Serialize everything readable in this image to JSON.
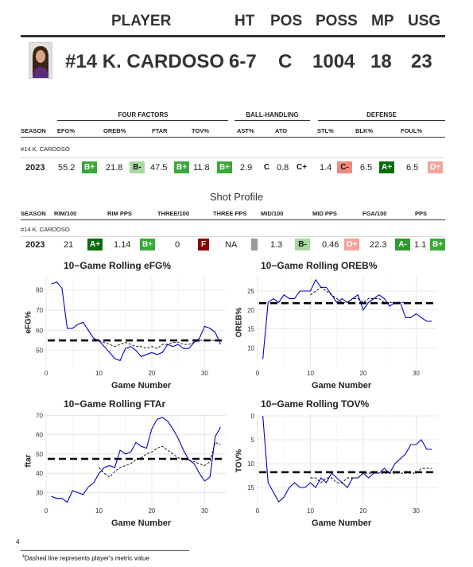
{
  "header": {
    "labels": [
      "PLAYER",
      "HT",
      "POS",
      "POSS",
      "MP",
      "USG"
    ],
    "player_name": "#14 K. CARDOSO",
    "ht": "6-7",
    "pos": "C",
    "poss": "1004",
    "mp": "18",
    "usg": "23"
  },
  "four_factors": {
    "groups": [
      "FOUR FACTORS",
      "BALL-HANDLING",
      "DEFENSE"
    ],
    "columns": [
      "SEASON",
      "EFG%",
      "OREB%",
      "FTAR",
      "TOV%",
      "AST%",
      "ATO",
      "STL%",
      "BLK%",
      "FOUL%"
    ],
    "player_label": "#14 K. CARDOSO",
    "row": {
      "season": "2023",
      "efg": "55.2",
      "efg_grade": "B+",
      "oreb": "21.8",
      "oreb_grade": "B-",
      "ftar": "47.5",
      "ftar_grade": "B+",
      "tov": "11.8",
      "tov_grade": "B+",
      "ast": "2.9",
      "ast_grade": "C",
      "ato": "0.8",
      "ato_grade": "C+",
      "stl": "1.4",
      "stl_grade": "C-",
      "blk": "6.5",
      "blk_grade": "A+",
      "foul": "6.5",
      "foul_grade": "D+"
    }
  },
  "shot_profile": {
    "title": "Shot Profile",
    "columns": [
      "SEASON",
      "RIM/100",
      "RIM PPS",
      "THREE/100",
      "THREE PPS",
      "MID/100",
      "MID PPS",
      "FGA/100",
      "PPS"
    ],
    "player_label": "#14 K. CARDOSO",
    "row": {
      "season": "2023",
      "rim100": "21",
      "rim100_grade": "A+",
      "rimpps": "1.14",
      "rimpps_grade": "B+",
      "three100": "0",
      "three100_grade": "F",
      "threepps": "NA",
      "mid100": "1.3",
      "mid100_grade": "B-",
      "midpps": "0.46",
      "midpps_grade": "D+",
      "fga100": "22.3",
      "fga100_grade": "A-",
      "pps": "1.1",
      "pps_grade": "B+"
    }
  },
  "colors": {
    "A+": "#0b6b0b",
    "A-": "#2f9a2f",
    "B+": "#3aa83a",
    "B-": "#a9d8a0",
    "C": "#ffffff",
    "C+": "#ffffff",
    "C-": "#f08a80",
    "D+": "#f4a39b",
    "F": "#8b0000",
    "NA": "#999999",
    "line": "#0000cc"
  },
  "chart_data": [
    {
      "type": "line",
      "title": "10−Game Rolling eFG%",
      "xlabel": "Game Number",
      "ylabel": "eFG%",
      "xlim": [
        0,
        34
      ],
      "ylim": [
        42,
        87
      ],
      "xticks": [
        0,
        10,
        20,
        30
      ],
      "yticks": [
        50,
        60,
        70,
        80
      ],
      "reference": 55,
      "series": [
        {
          "style": "solid",
          "x": [
            1,
            2,
            3,
            4,
            5,
            6,
            7,
            8,
            9,
            10,
            11,
            12,
            13,
            14,
            15,
            16,
            17,
            18,
            19,
            20,
            21,
            22,
            23,
            24,
            25,
            26,
            27,
            28,
            29,
            30,
            31,
            32,
            33
          ],
          "y": [
            83,
            84,
            81,
            61,
            61,
            63,
            64,
            60,
            56,
            55,
            52,
            49,
            46,
            45,
            51,
            52,
            50,
            47,
            48,
            49,
            48,
            49,
            53,
            52,
            53,
            51,
            51,
            54,
            56,
            62,
            61,
            59,
            53
          ]
        },
        {
          "style": "dashed",
          "x": [
            10,
            11,
            12,
            13,
            14,
            15,
            16,
            17,
            18,
            19,
            20,
            21,
            22,
            23,
            24,
            25,
            26,
            27,
            28,
            29,
            30,
            31,
            32,
            33
          ],
          "y": [
            55,
            54,
            53,
            52,
            53,
            54,
            53,
            52,
            52,
            51,
            52,
            51,
            53,
            53,
            54,
            54,
            53,
            53,
            54,
            55,
            55,
            55,
            55,
            55
          ]
        }
      ]
    },
    {
      "type": "line",
      "title": "10−Game Rolling OREB%",
      "xlabel": "Game Number",
      "ylabel": "OREB%",
      "xlim": [
        0,
        34
      ],
      "ylim": [
        5,
        29
      ],
      "xticks": [
        0,
        10,
        20,
        30
      ],
      "yticks": [
        10,
        15,
        20,
        25
      ],
      "reference": 21.8,
      "series": [
        {
          "style": "solid",
          "x": [
            1,
            2,
            3,
            4,
            5,
            6,
            7,
            8,
            9,
            10,
            11,
            12,
            13,
            14,
            15,
            16,
            17,
            18,
            19,
            20,
            21,
            22,
            23,
            24,
            25,
            26,
            27,
            28,
            29,
            30,
            31,
            32,
            33
          ],
          "y": [
            7,
            22,
            23,
            22,
            24,
            23,
            23,
            25,
            25,
            25,
            28,
            26,
            26,
            24,
            22,
            23,
            22,
            23,
            24,
            20,
            22,
            23,
            24,
            23,
            21,
            22,
            22,
            18,
            18,
            19,
            18,
            17,
            17
          ]
        },
        {
          "style": "dashed",
          "x": [
            10,
            11,
            12,
            13,
            14,
            15,
            16,
            17,
            18,
            19,
            20,
            21,
            22,
            23,
            24,
            25,
            26,
            27,
            28
          ],
          "y": [
            24,
            25,
            26,
            25,
            24,
            23,
            22,
            22,
            23,
            23,
            22,
            23,
            23,
            23,
            22,
            22,
            22,
            22,
            22
          ]
        }
      ]
    },
    {
      "type": "line",
      "title": "10−Game Rolling FTAr",
      "xlabel": "Game Number",
      "ylabel": "ftar",
      "xlim": [
        0,
        34
      ],
      "ylim": [
        24,
        71
      ],
      "xticks": [
        0,
        10,
        20,
        30
      ],
      "yticks": [
        30,
        40,
        50,
        60,
        70
      ],
      "reference": 47.5,
      "series": [
        {
          "style": "solid",
          "x": [
            1,
            2,
            3,
            4,
            5,
            6,
            7,
            8,
            9,
            10,
            11,
            12,
            13,
            14,
            15,
            16,
            17,
            18,
            19,
            20,
            21,
            22,
            23,
            24,
            25,
            26,
            27,
            28,
            29,
            30,
            31,
            32,
            33
          ],
          "y": [
            28,
            27,
            27,
            25,
            31,
            30,
            29,
            33,
            35,
            40,
            43,
            44,
            43,
            52,
            50,
            51,
            56,
            54,
            53,
            63,
            68,
            69,
            67,
            63,
            58,
            52,
            47,
            45,
            40,
            36,
            38,
            59,
            64
          ]
        },
        {
          "style": "dashed",
          "x": [
            10,
            11,
            12,
            13,
            14,
            15,
            16,
            17,
            18,
            19,
            20,
            21,
            22,
            23,
            24,
            25,
            26,
            27,
            28,
            29,
            30,
            31,
            32,
            33
          ],
          "y": [
            43,
            40,
            38,
            41,
            43,
            44,
            45,
            47,
            48,
            50,
            51,
            53,
            54,
            52,
            50,
            48,
            47,
            47,
            46,
            45,
            44,
            46,
            56,
            55
          ]
        }
      ]
    },
    {
      "type": "line",
      "title": "10−Game Rolling TOV%",
      "xlabel": "Game Number",
      "ylabel": "TOV%",
      "xlim": [
        0,
        34
      ],
      "ylim_reversed": true,
      "ylim": [
        -0.5,
        18.5
      ],
      "xticks": [
        0,
        10,
        20,
        30
      ],
      "yticks": [
        0,
        5,
        10,
        15
      ],
      "reference": 11.8,
      "series": [
        {
          "style": "solid",
          "x": [
            1,
            2,
            3,
            4,
            5,
            6,
            7,
            8,
            9,
            10,
            11,
            12,
            13,
            14,
            15,
            16,
            17,
            18,
            19,
            20,
            21,
            22,
            23,
            24,
            25,
            26,
            27,
            28,
            29,
            30,
            31,
            32,
            33
          ],
          "y": [
            0,
            14,
            16,
            18,
            17,
            15,
            14,
            15,
            15,
            14,
            15,
            13,
            14,
            12,
            13,
            14,
            15,
            13,
            13,
            12,
            13,
            12,
            12,
            11,
            12,
            10,
            9,
            8,
            6,
            6,
            5,
            7,
            7
          ]
        },
        {
          "style": "dashed",
          "x": [
            10,
            11,
            12,
            13,
            14,
            15,
            16,
            17,
            18,
            19,
            20,
            21,
            22,
            23,
            24,
            25,
            26,
            27,
            28,
            29,
            30,
            31,
            32,
            33
          ],
          "y": [
            13,
            13,
            14,
            13,
            13,
            14,
            14,
            13,
            13,
            13,
            12,
            12,
            12,
            12,
            12,
            12,
            12,
            12,
            12,
            12,
            12,
            11,
            11,
            11
          ]
        }
      ]
    }
  ],
  "footnote_marker": "4",
  "footnote_text": "Dashed line represents player's metric value",
  "footnote_sup": "4"
}
